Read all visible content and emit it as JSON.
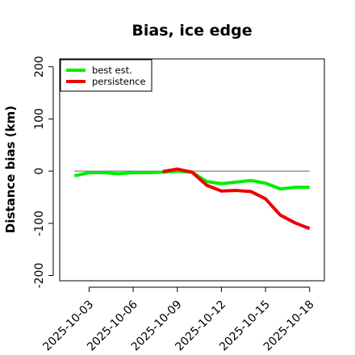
{
  "chart_data": {
    "type": "line",
    "title": "Bias, ice edge",
    "xlabel": "",
    "ylabel": "Distance bias (km)",
    "ylim": [
      -210,
      215
    ],
    "yticks": [
      -200,
      -100,
      0,
      100,
      200
    ],
    "ytick_labels": [
      "-200",
      "-100",
      "0",
      "100",
      "200"
    ],
    "xlim": [
      "2025-10-01",
      "2025-10-19"
    ],
    "xticks": [
      "2025-10-03",
      "2025-10-06",
      "2025-10-09",
      "2025-10-12",
      "2025-10-15",
      "2025-10-18"
    ],
    "xtick_labels": [
      "2025-10-03",
      "2025-10-06",
      "2025-10-09",
      "2025-10-12",
      "2025-10-15",
      "2025-10-18"
    ],
    "reference_line": {
      "y": 0,
      "from": "2025-10-02",
      "to": "2025-10-18",
      "color": "#808080"
    },
    "legend_position": "top-left",
    "grid": false,
    "series": [
      {
        "name": "best est.",
        "color": "#00ee00",
        "points": [
          [
            "2025-10-02",
            -9
          ],
          [
            "2025-10-03",
            -3
          ],
          [
            "2025-10-04",
            -3
          ],
          [
            "2025-10-05",
            -5
          ],
          [
            "2025-10-06",
            -3
          ],
          [
            "2025-10-07",
            -3
          ],
          [
            "2025-10-08",
            -2
          ],
          [
            "2025-10-09",
            0
          ],
          [
            "2025-10-10",
            -2
          ],
          [
            "2025-10-11",
            -20
          ],
          [
            "2025-10-12",
            -24
          ],
          [
            "2025-10-13",
            -21
          ],
          [
            "2025-10-14",
            -18
          ],
          [
            "2025-10-15",
            -23
          ],
          [
            "2025-10-16",
            -34
          ],
          [
            "2025-10-17",
            -31
          ],
          [
            "2025-10-18",
            -31
          ]
        ]
      },
      {
        "name": "persistence",
        "color": "#ee0000",
        "points": [
          [
            "2025-10-08",
            -1
          ],
          [
            "2025-10-09",
            4
          ],
          [
            "2025-10-10",
            -2
          ],
          [
            "2025-10-11",
            -27
          ],
          [
            "2025-10-12",
            -38
          ],
          [
            "2025-10-13",
            -37
          ],
          [
            "2025-10-14",
            -39
          ],
          [
            "2025-10-15",
            -53
          ],
          [
            "2025-10-16",
            -84
          ],
          [
            "2025-10-17",
            -99
          ],
          [
            "2025-10-18",
            -110
          ]
        ]
      }
    ]
  }
}
